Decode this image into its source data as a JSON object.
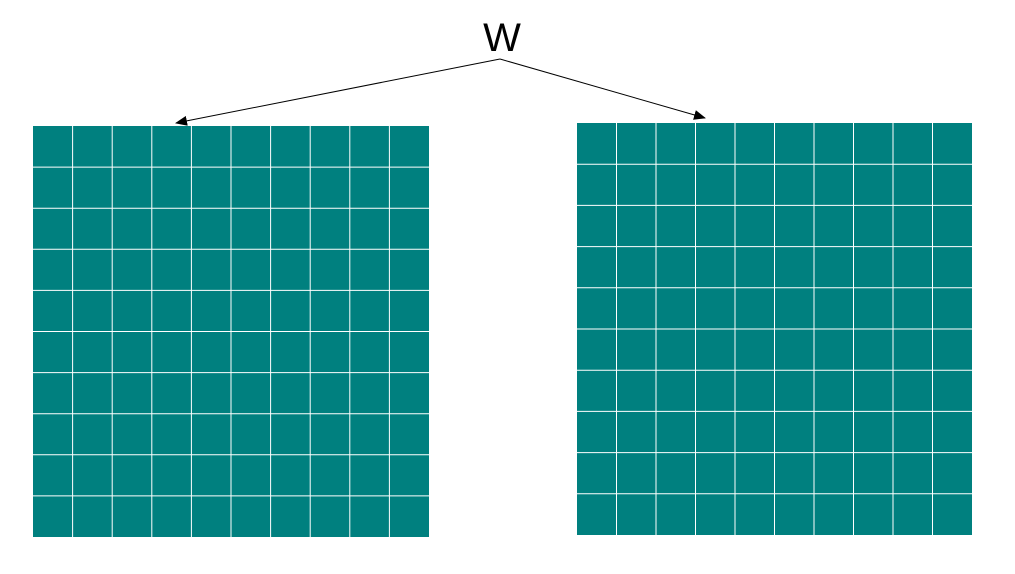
{
  "label": "W",
  "colors": {
    "cell_fill": "#00807F",
    "grid_line": "#FFFFFF",
    "arrow": "#000000",
    "background": "#FFFFFF"
  },
  "grids": [
    {
      "rows": 10,
      "cols": 10
    },
    {
      "rows": 10,
      "cols": 10
    }
  ]
}
